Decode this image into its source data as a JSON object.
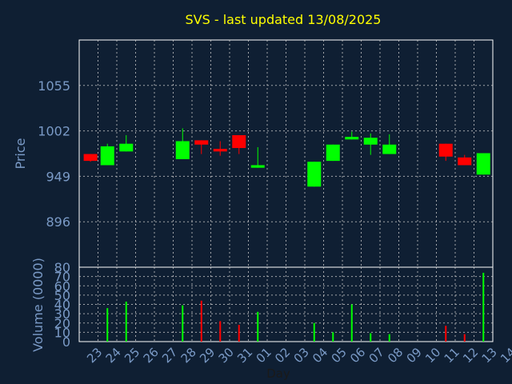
{
  "chart_data": [
    {
      "type": "candlestick",
      "title": "SVS - last updated 13/08/2025",
      "xlabel": "",
      "ylabel": "Price",
      "ylim": [
        843,
        1108
      ],
      "yticks": [
        "1055",
        "1002",
        "949",
        "896"
      ],
      "grid": true,
      "x": [
        "23",
        "24",
        "25",
        "26",
        "27",
        "28",
        "29",
        "30",
        "31",
        "01",
        "02",
        "03",
        "04",
        "05",
        "06",
        "07",
        "08",
        "09",
        "10",
        "11",
        "12",
        "13",
        "14"
      ],
      "candles": [
        {
          "x": 22.6,
          "open": 975,
          "close": 967,
          "high": 975,
          "low": 966
        },
        {
          "x": 23.5,
          "open": 962,
          "close": 984,
          "high": 987,
          "low": 962
        },
        {
          "x": 24.5,
          "open": 978,
          "close": 987,
          "high": 997,
          "low": 978
        },
        {
          "x": 27.5,
          "open": 969,
          "close": 990,
          "high": 1005,
          "low": 969
        },
        {
          "x": 28.5,
          "open": 991,
          "close": 986,
          "high": 991,
          "low": 975
        },
        {
          "x": 29.5,
          "open": 981,
          "close": 978,
          "high": 990,
          "low": 973
        },
        {
          "x": 30.5,
          "open": 997,
          "close": 982,
          "high": 997,
          "low": 975
        },
        {
          "x": 31.5,
          "open": 959,
          "close": 962,
          "high": 983,
          "low": 959
        },
        {
          "x": 34.5,
          "open": 937,
          "close": 966,
          "high": 966,
          "low": 937
        },
        {
          "x": 35.5,
          "open": 967,
          "close": 986,
          "high": 986,
          "low": 967
        },
        {
          "x": 36.5,
          "open": 992,
          "close": 995,
          "high": 1001,
          "low": 992
        },
        {
          "x": 37.5,
          "open": 986,
          "close": 994,
          "high": 999,
          "low": 974
        },
        {
          "x": 38.5,
          "open": 975,
          "close": 986,
          "high": 998,
          "low": 975
        },
        {
          "x": 41.5,
          "open": 987,
          "close": 972,
          "high": 987,
          "low": 967
        },
        {
          "x": 42.5,
          "open": 971,
          "close": 962,
          "high": 974,
          "low": 962
        },
        {
          "x": 43.5,
          "open": 951,
          "close": 976,
          "high": 976,
          "low": 951
        }
      ]
    },
    {
      "type": "bar",
      "title": "",
      "xlabel": "Day",
      "ylabel": "Volume (0000)",
      "ylim": [
        0,
        80
      ],
      "yticks": [
        0,
        10,
        20,
        30,
        40,
        50,
        60,
        70,
        80
      ],
      "grid": true,
      "x": [
        "23",
        "24",
        "25",
        "26",
        "27",
        "28",
        "29",
        "30",
        "31",
        "01",
        "02",
        "03",
        "04",
        "05",
        "06",
        "07",
        "08",
        "09",
        "10",
        "11",
        "12",
        "13",
        "14"
      ],
      "bars": [
        {
          "x": 23.5,
          "value": 36,
          "direction": "up"
        },
        {
          "x": 24.5,
          "value": 43,
          "direction": "up"
        },
        {
          "x": 27.5,
          "value": 39,
          "direction": "up"
        },
        {
          "x": 28.5,
          "value": 44,
          "direction": "down"
        },
        {
          "x": 29.5,
          "value": 22,
          "direction": "down"
        },
        {
          "x": 30.5,
          "value": 18,
          "direction": "down"
        },
        {
          "x": 31.5,
          "value": 32,
          "direction": "up"
        },
        {
          "x": 34.5,
          "value": 20,
          "direction": "up"
        },
        {
          "x": 35.5,
          "value": 10,
          "direction": "up"
        },
        {
          "x": 36.5,
          "value": 40,
          "direction": "up"
        },
        {
          "x": 37.5,
          "value": 9,
          "direction": "up"
        },
        {
          "x": 38.5,
          "value": 8,
          "direction": "up"
        },
        {
          "x": 41.5,
          "value": 17,
          "direction": "down"
        },
        {
          "x": 42.5,
          "value": 8,
          "direction": "down"
        },
        {
          "x": 43.5,
          "value": 74,
          "direction": "up"
        }
      ]
    }
  ],
  "colors": {
    "background": "#0f1f33",
    "axis_text": "#7a9ac6",
    "title": "#ffff00",
    "grid": "#c8c8c8",
    "up": "#00ff00",
    "down": "#ff0000",
    "frame": "#ffffff"
  }
}
